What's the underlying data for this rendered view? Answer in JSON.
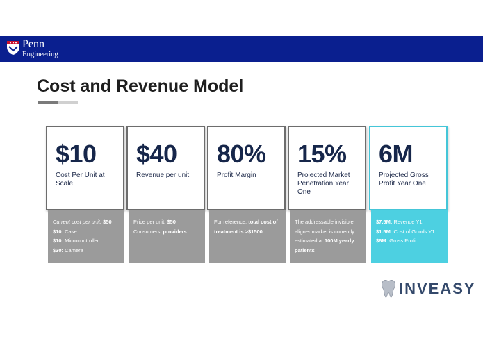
{
  "header": {
    "logo_line1": "Penn",
    "logo_line2": "Engineering",
    "background": "#0a1f8f"
  },
  "slide": {
    "title": "Cost and Revenue Model"
  },
  "cards": [
    {
      "value": "$10",
      "label": "Cost Per Unit at Scale",
      "details": [
        {
          "label": "Current cost per unit:",
          "value": "$50"
        },
        {
          "label": "$10:",
          "value": "Case"
        },
        {
          "label": "$10:",
          "value": "Microcontroller"
        },
        {
          "label": "$30:",
          "value": "Camera"
        }
      ]
    },
    {
      "value": "$40",
      "label": "Revenue per unit",
      "details": [
        {
          "label": "Price per unit:",
          "value": "$50"
        },
        {
          "label": "Consumers:",
          "value": "providers"
        }
      ]
    },
    {
      "value": "80%",
      "label": "Profit Margin",
      "details": [
        {
          "label": "For reference,",
          "value": "total cost of treatment is >$1500"
        }
      ]
    },
    {
      "value": "15%",
      "label": "Projected Market Penetration Year One",
      "details": [
        {
          "label": "The addressable invisible aligner market is currently estimated at",
          "value": "100M yearly patients"
        }
      ]
    },
    {
      "value": "6M",
      "label": "Projected Gross Profit Year One",
      "details": [
        {
          "label": "$7.5M:",
          "value": "Revenue Y1"
        },
        {
          "label": "$1.5M:",
          "value": "Cost of Goods Y1"
        },
        {
          "label": "$6M:",
          "value": "Gross Profit"
        }
      ]
    }
  ],
  "brand": {
    "name": "INVEASY",
    "icon": "tooth-icon"
  },
  "colors": {
    "card_bottom_gray": "#9b9b9b",
    "card_bottom_accent": "#4dd0e1",
    "text_dark": "#16264a"
  }
}
